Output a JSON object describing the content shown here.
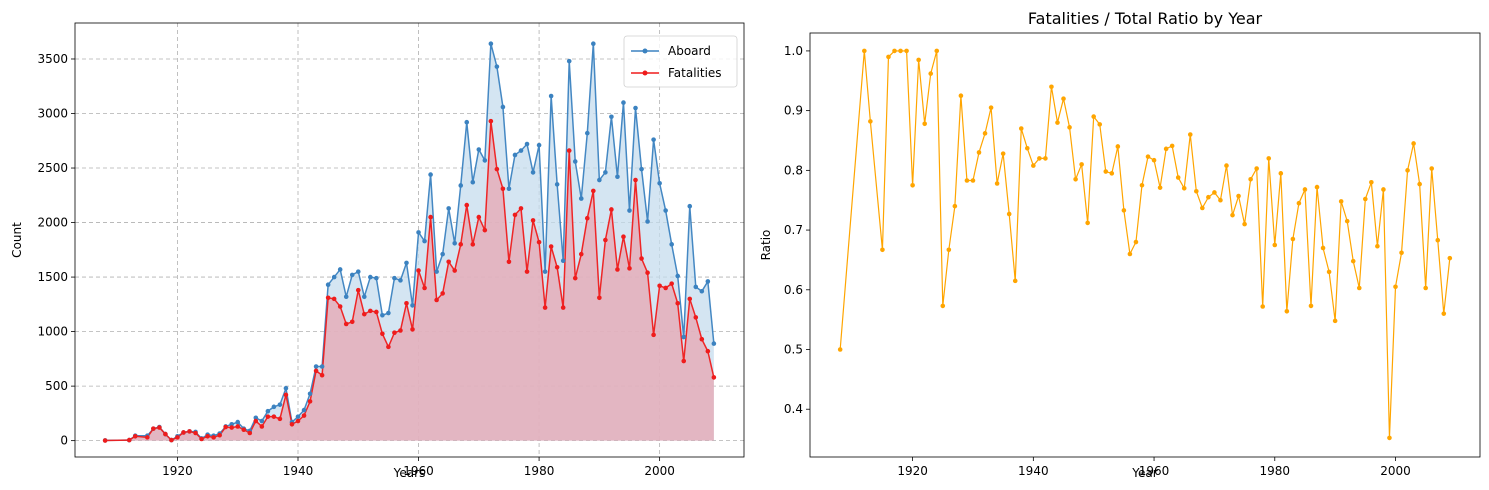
{
  "chart_data": [
    {
      "type": "area",
      "title": "",
      "xlabel": "Years",
      "ylabel": "Count",
      "xlim": [
        1903,
        2014
      ],
      "ylim": [
        -150,
        3830
      ],
      "xticks": [
        1920,
        1940,
        1960,
        1980,
        2000
      ],
      "yticks": [
        0,
        500,
        1000,
        1500,
        2000,
        2500,
        3000,
        3500
      ],
      "grid": true,
      "legend": "top-right",
      "x": [
        1908,
        1912,
        1913,
        1915,
        1916,
        1917,
        1918,
        1919,
        1920,
        1921,
        1922,
        1923,
        1924,
        1925,
        1926,
        1927,
        1928,
        1929,
        1930,
        1931,
        1932,
        1933,
        1934,
        1935,
        1936,
        1937,
        1938,
        1939,
        1940,
        1941,
        1942,
        1943,
        1944,
        1945,
        1946,
        1947,
        1948,
        1949,
        1950,
        1951,
        1952,
        1953,
        1954,
        1955,
        1956,
        1957,
        1958,
        1959,
        1960,
        1961,
        1962,
        1963,
        1964,
        1965,
        1966,
        1967,
        1968,
        1969,
        1970,
        1971,
        1972,
        1973,
        1974,
        1975,
        1976,
        1977,
        1978,
        1979,
        1980,
        1981,
        1982,
        1983,
        1984,
        1985,
        1986,
        1987,
        1988,
        1989,
        1990,
        1991,
        1992,
        1993,
        1994,
        1995,
        1996,
        1997,
        1998,
        1999,
        2000,
        2001,
        2002,
        2003,
        2004,
        2005,
        2006,
        2007,
        2008,
        2009
      ],
      "series": [
        {
          "name": "Aboard",
          "color": "#3b82c0",
          "values": [
            2,
            5,
            45,
            45,
            110,
            125,
            60,
            5,
            40,
            75,
            85,
            80,
            20,
            55,
            45,
            65,
            130,
            150,
            170,
            110,
            90,
            210,
            180,
            270,
            310,
            330,
            480,
            170,
            220,
            280,
            430,
            680,
            680,
            1430,
            1500,
            1570,
            1320,
            1520,
            1550,
            1320,
            1500,
            1490,
            1150,
            1170,
            1490,
            1470,
            1630,
            1240,
            1910,
            1830,
            2440,
            1550,
            1710,
            2130,
            1810,
            2340,
            2920,
            2370,
            2670,
            2570,
            3640,
            3430,
            3060,
            2310,
            2620,
            2660,
            2720,
            2460,
            2710,
            1550,
            3160,
            2350,
            1650,
            3480,
            2560,
            2220,
            2820,
            3640,
            2390,
            2460,
            2970,
            2420,
            3100,
            2110,
            3050,
            2490,
            2010,
            2760,
            2360,
            2110,
            1800,
            1510,
            950,
            2150,
            1410,
            1370,
            1460,
            890
          ]
        },
        {
          "name": "Fatalities",
          "color": "#ef1c1c",
          "values": [
            1,
            5,
            40,
            30,
            110,
            120,
            60,
            5,
            30,
            75,
            85,
            70,
            15,
            40,
            30,
            50,
            125,
            120,
            130,
            100,
            70,
            180,
            130,
            220,
            220,
            200,
            420,
            150,
            180,
            230,
            360,
            640,
            600,
            1310,
            1300,
            1230,
            1070,
            1090,
            1380,
            1160,
            1190,
            1180,
            980,
            860,
            990,
            1010,
            1260,
            1020,
            1560,
            1400,
            2050,
            1290,
            1350,
            1640,
            1560,
            1800,
            2160,
            1800,
            2050,
            1930,
            2930,
            2490,
            2310,
            1640,
            2070,
            2130,
            1550,
            2020,
            1820,
            1220,
            1780,
            1590,
            1220,
            2660,
            1490,
            1710,
            2040,
            2290,
            1310,
            1840,
            2120,
            1570,
            1870,
            1580,
            2390,
            1670,
            1540,
            970,
            1420,
            1400,
            1440,
            1260,
            730,
            1300,
            1130,
            930,
            820,
            580
          ]
        }
      ]
    },
    {
      "type": "line",
      "title": "Fatalities / Total Ratio by Year",
      "xlabel": "Year",
      "ylabel": "Ratio",
      "xlim": [
        1903,
        2014
      ],
      "ylim": [
        0.32,
        1.03
      ],
      "xticks": [
        1920,
        1940,
        1960,
        1980,
        2000
      ],
      "yticks": [
        0.4,
        0.5,
        0.6,
        0.7,
        0.8,
        0.9,
        1.0
      ],
      "ytick_labels": [
        "0.4",
        "0.5",
        "0.6",
        "0.7",
        "0.8",
        "0.9",
        "1.0"
      ],
      "grid": false,
      "color": "#ffa500",
      "x": [
        1908,
        1912,
        1913,
        1915,
        1916,
        1917,
        1918,
        1919,
        1920,
        1921,
        1922,
        1923,
        1924,
        1925,
        1926,
        1927,
        1928,
        1929,
        1930,
        1931,
        1932,
        1933,
        1934,
        1935,
        1936,
        1937,
        1938,
        1939,
        1940,
        1941,
        1942,
        1943,
        1944,
        1945,
        1946,
        1947,
        1948,
        1949,
        1950,
        1951,
        1952,
        1953,
        1954,
        1955,
        1956,
        1957,
        1958,
        1959,
        1960,
        1961,
        1962,
        1963,
        1964,
        1965,
        1966,
        1967,
        1968,
        1969,
        1970,
        1971,
        1972,
        1973,
        1974,
        1975,
        1976,
        1977,
        1978,
        1979,
        1980,
        1981,
        1982,
        1983,
        1984,
        1985,
        1986,
        1987,
        1988,
        1989,
        1990,
        1991,
        1992,
        1993,
        1994,
        1995,
        1996,
        1997,
        1998,
        1999,
        2000,
        2001,
        2002,
        2003,
        2004,
        2005,
        2006,
        2007,
        2008,
        2009
      ],
      "values": [
        0.5,
        1.0,
        0.882,
        0.667,
        0.99,
        1.0,
        1.0,
        1.0,
        0.775,
        0.985,
        0.878,
        0.962,
        1.0,
        0.573,
        0.667,
        0.74,
        0.925,
        0.783,
        0.783,
        0.83,
        0.862,
        0.905,
        0.778,
        0.828,
        0.727,
        0.615,
        0.87,
        0.837,
        0.808,
        0.82,
        0.82,
        0.94,
        0.88,
        0.92,
        0.872,
        0.785,
        0.81,
        0.712,
        0.89,
        0.877,
        0.798,
        0.795,
        0.84,
        0.733,
        0.66,
        0.68,
        0.775,
        0.823,
        0.817,
        0.771,
        0.836,
        0.841,
        0.788,
        0.77,
        0.86,
        0.765,
        0.737,
        0.755,
        0.763,
        0.75,
        0.808,
        0.725,
        0.757,
        0.71,
        0.785,
        0.803,
        0.572,
        0.82,
        0.675,
        0.795,
        0.564,
        0.685,
        0.745,
        0.768,
        0.573,
        0.772,
        0.67,
        0.63,
        0.548,
        0.748,
        0.715,
        0.648,
        0.603,
        0.752,
        0.78,
        0.673,
        0.768,
        0.352,
        0.605,
        0.662,
        0.8,
        0.845,
        0.777,
        0.603,
        0.803,
        0.683,
        0.56,
        0.653
      ]
    }
  ]
}
